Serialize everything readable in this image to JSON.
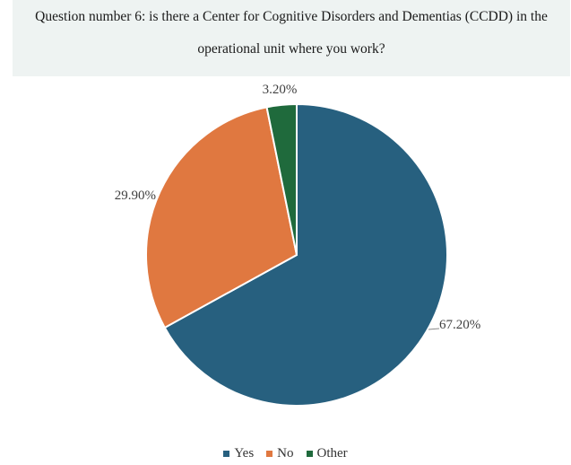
{
  "header": {
    "title_line1": "Question number 6:  is there a Center for Cognitive Disorders and Dementias (CCDD) in the",
    "title_line2": "operational unit  where you work?"
  },
  "chart_data": {
    "type": "pie",
    "categories": [
      "Yes",
      "No",
      "Other"
    ],
    "values": [
      67.2,
      29.9,
      3.2
    ],
    "labels": [
      "67.20%",
      "29.90%",
      "3.20%"
    ],
    "colors": [
      "#27607f",
      "#e07840",
      "#1f6a3c"
    ],
    "start": "12 o'clock, clockwise",
    "legend_position": "bottom"
  }
}
